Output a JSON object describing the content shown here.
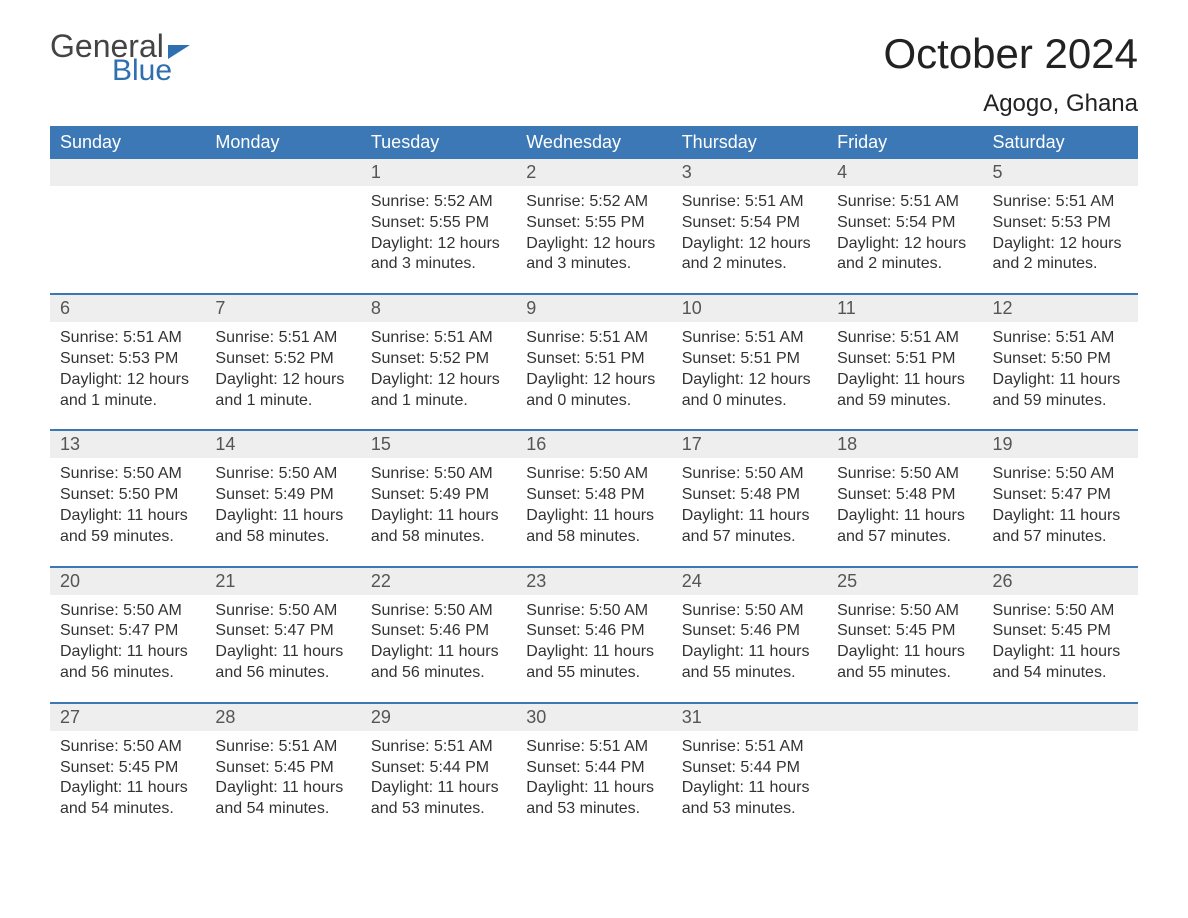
{
  "brand": {
    "word1": "General",
    "word2": "Blue"
  },
  "title": "October 2024",
  "location": "Agogo, Ghana",
  "colors": {
    "header_bg": "#3b78b5",
    "header_text": "#ffffff",
    "daynum_bg": "#eeeeee",
    "daynum_text": "#555555",
    "body_text": "#333333",
    "week_border": "#3b78b5",
    "brand_blue": "#2f6fb0",
    "brand_gray": "#444444",
    "page_bg": "#ffffff"
  },
  "fonts": {
    "title_size_pt": 32,
    "location_size_pt": 18,
    "dayhead_size_pt": 14,
    "cell_size_pt": 12,
    "daynum_size_pt": 14
  },
  "day_headers": [
    "Sunday",
    "Monday",
    "Tuesday",
    "Wednesday",
    "Thursday",
    "Friday",
    "Saturday"
  ],
  "weeks": [
    [
      {
        "n": "",
        "sunrise": "",
        "sunset": "",
        "daylight": ""
      },
      {
        "n": "",
        "sunrise": "",
        "sunset": "",
        "daylight": ""
      },
      {
        "n": "1",
        "sunrise": "Sunrise: 5:52 AM",
        "sunset": "Sunset: 5:55 PM",
        "daylight": "Daylight: 12 hours and 3 minutes."
      },
      {
        "n": "2",
        "sunrise": "Sunrise: 5:52 AM",
        "sunset": "Sunset: 5:55 PM",
        "daylight": "Daylight: 12 hours and 3 minutes."
      },
      {
        "n": "3",
        "sunrise": "Sunrise: 5:51 AM",
        "sunset": "Sunset: 5:54 PM",
        "daylight": "Daylight: 12 hours and 2 minutes."
      },
      {
        "n": "4",
        "sunrise": "Sunrise: 5:51 AM",
        "sunset": "Sunset: 5:54 PM",
        "daylight": "Daylight: 12 hours and 2 minutes."
      },
      {
        "n": "5",
        "sunrise": "Sunrise: 5:51 AM",
        "sunset": "Sunset: 5:53 PM",
        "daylight": "Daylight: 12 hours and 2 minutes."
      }
    ],
    [
      {
        "n": "6",
        "sunrise": "Sunrise: 5:51 AM",
        "sunset": "Sunset: 5:53 PM",
        "daylight": "Daylight: 12 hours and 1 minute."
      },
      {
        "n": "7",
        "sunrise": "Sunrise: 5:51 AM",
        "sunset": "Sunset: 5:52 PM",
        "daylight": "Daylight: 12 hours and 1 minute."
      },
      {
        "n": "8",
        "sunrise": "Sunrise: 5:51 AM",
        "sunset": "Sunset: 5:52 PM",
        "daylight": "Daylight: 12 hours and 1 minute."
      },
      {
        "n": "9",
        "sunrise": "Sunrise: 5:51 AM",
        "sunset": "Sunset: 5:51 PM",
        "daylight": "Daylight: 12 hours and 0 minutes."
      },
      {
        "n": "10",
        "sunrise": "Sunrise: 5:51 AM",
        "sunset": "Sunset: 5:51 PM",
        "daylight": "Daylight: 12 hours and 0 minutes."
      },
      {
        "n": "11",
        "sunrise": "Sunrise: 5:51 AM",
        "sunset": "Sunset: 5:51 PM",
        "daylight": "Daylight: 11 hours and 59 minutes."
      },
      {
        "n": "12",
        "sunrise": "Sunrise: 5:51 AM",
        "sunset": "Sunset: 5:50 PM",
        "daylight": "Daylight: 11 hours and 59 minutes."
      }
    ],
    [
      {
        "n": "13",
        "sunrise": "Sunrise: 5:50 AM",
        "sunset": "Sunset: 5:50 PM",
        "daylight": "Daylight: 11 hours and 59 minutes."
      },
      {
        "n": "14",
        "sunrise": "Sunrise: 5:50 AM",
        "sunset": "Sunset: 5:49 PM",
        "daylight": "Daylight: 11 hours and 58 minutes."
      },
      {
        "n": "15",
        "sunrise": "Sunrise: 5:50 AM",
        "sunset": "Sunset: 5:49 PM",
        "daylight": "Daylight: 11 hours and 58 minutes."
      },
      {
        "n": "16",
        "sunrise": "Sunrise: 5:50 AM",
        "sunset": "Sunset: 5:48 PM",
        "daylight": "Daylight: 11 hours and 58 minutes."
      },
      {
        "n": "17",
        "sunrise": "Sunrise: 5:50 AM",
        "sunset": "Sunset: 5:48 PM",
        "daylight": "Daylight: 11 hours and 57 minutes."
      },
      {
        "n": "18",
        "sunrise": "Sunrise: 5:50 AM",
        "sunset": "Sunset: 5:48 PM",
        "daylight": "Daylight: 11 hours and 57 minutes."
      },
      {
        "n": "19",
        "sunrise": "Sunrise: 5:50 AM",
        "sunset": "Sunset: 5:47 PM",
        "daylight": "Daylight: 11 hours and 57 minutes."
      }
    ],
    [
      {
        "n": "20",
        "sunrise": "Sunrise: 5:50 AM",
        "sunset": "Sunset: 5:47 PM",
        "daylight": "Daylight: 11 hours and 56 minutes."
      },
      {
        "n": "21",
        "sunrise": "Sunrise: 5:50 AM",
        "sunset": "Sunset: 5:47 PM",
        "daylight": "Daylight: 11 hours and 56 minutes."
      },
      {
        "n": "22",
        "sunrise": "Sunrise: 5:50 AM",
        "sunset": "Sunset: 5:46 PM",
        "daylight": "Daylight: 11 hours and 56 minutes."
      },
      {
        "n": "23",
        "sunrise": "Sunrise: 5:50 AM",
        "sunset": "Sunset: 5:46 PM",
        "daylight": "Daylight: 11 hours and 55 minutes."
      },
      {
        "n": "24",
        "sunrise": "Sunrise: 5:50 AM",
        "sunset": "Sunset: 5:46 PM",
        "daylight": "Daylight: 11 hours and 55 minutes."
      },
      {
        "n": "25",
        "sunrise": "Sunrise: 5:50 AM",
        "sunset": "Sunset: 5:45 PM",
        "daylight": "Daylight: 11 hours and 55 minutes."
      },
      {
        "n": "26",
        "sunrise": "Sunrise: 5:50 AM",
        "sunset": "Sunset: 5:45 PM",
        "daylight": "Daylight: 11 hours and 54 minutes."
      }
    ],
    [
      {
        "n": "27",
        "sunrise": "Sunrise: 5:50 AM",
        "sunset": "Sunset: 5:45 PM",
        "daylight": "Daylight: 11 hours and 54 minutes."
      },
      {
        "n": "28",
        "sunrise": "Sunrise: 5:51 AM",
        "sunset": "Sunset: 5:45 PM",
        "daylight": "Daylight: 11 hours and 54 minutes."
      },
      {
        "n": "29",
        "sunrise": "Sunrise: 5:51 AM",
        "sunset": "Sunset: 5:44 PM",
        "daylight": "Daylight: 11 hours and 53 minutes."
      },
      {
        "n": "30",
        "sunrise": "Sunrise: 5:51 AM",
        "sunset": "Sunset: 5:44 PM",
        "daylight": "Daylight: 11 hours and 53 minutes."
      },
      {
        "n": "31",
        "sunrise": "Sunrise: 5:51 AM",
        "sunset": "Sunset: 5:44 PM",
        "daylight": "Daylight: 11 hours and 53 minutes."
      },
      {
        "n": "",
        "sunrise": "",
        "sunset": "",
        "daylight": ""
      },
      {
        "n": "",
        "sunrise": "",
        "sunset": "",
        "daylight": ""
      }
    ]
  ]
}
